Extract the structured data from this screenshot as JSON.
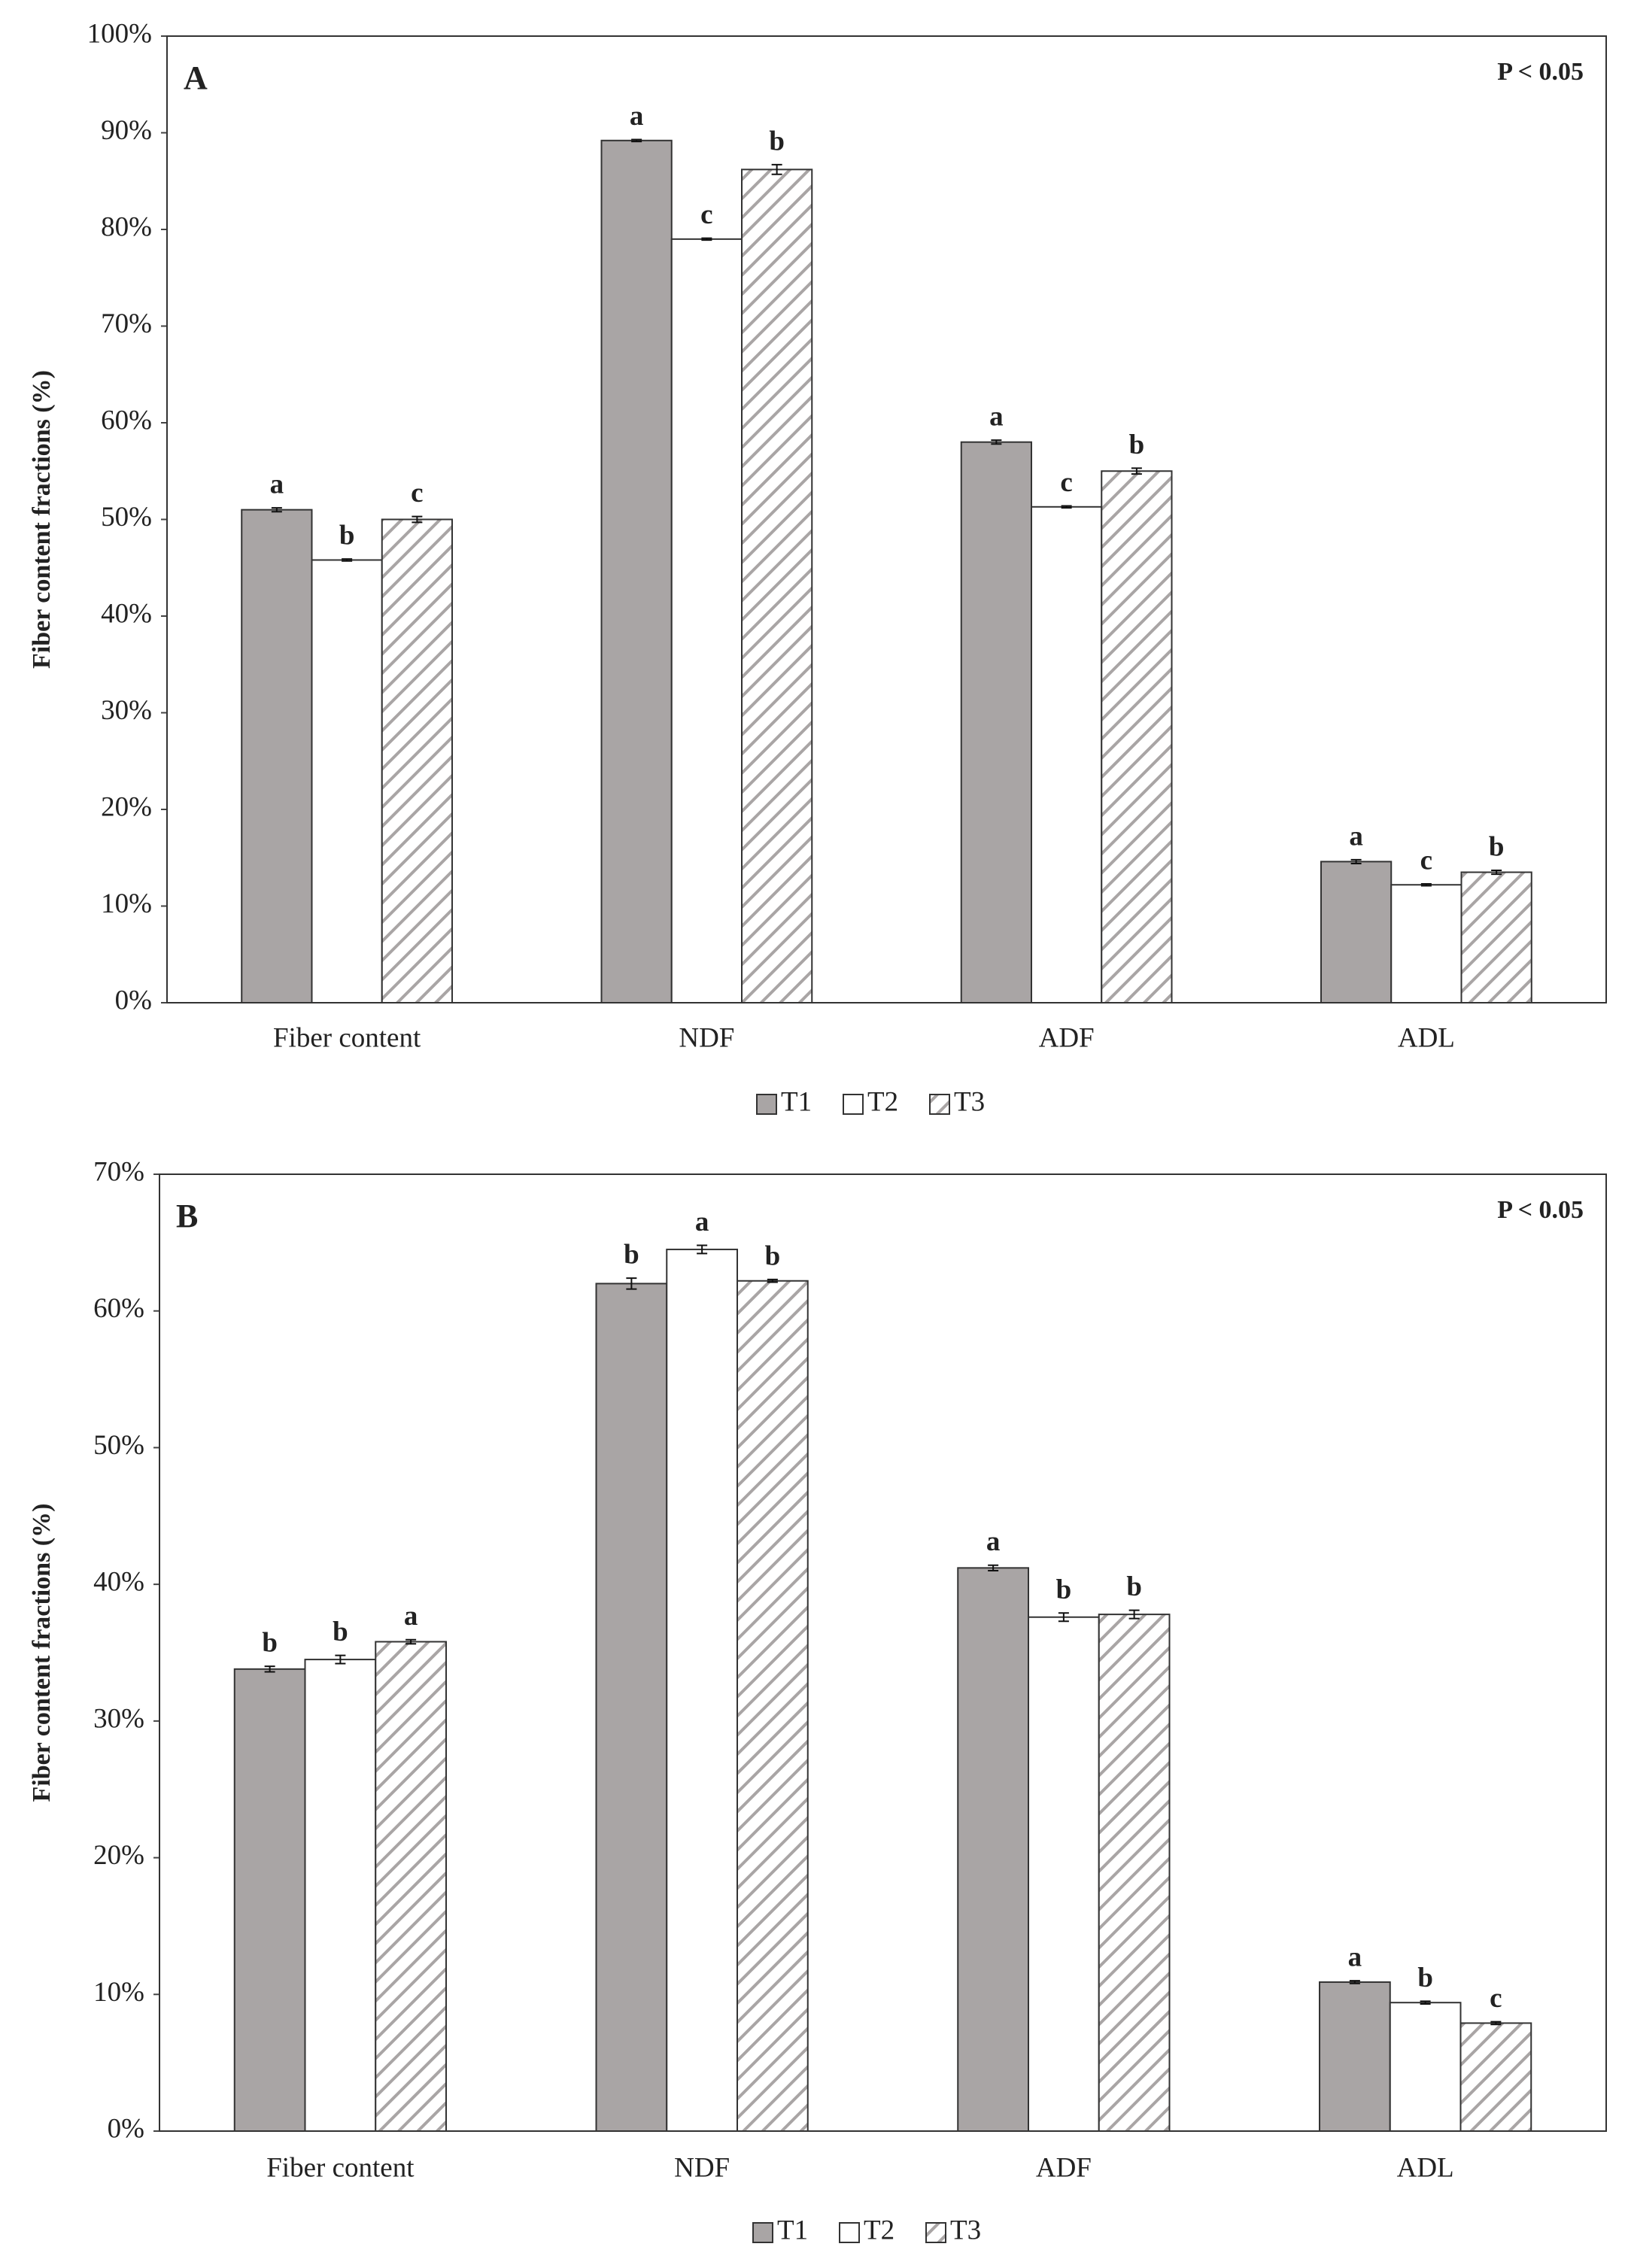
{
  "chart_data": [
    {
      "type": "bar",
      "panel": "A",
      "annotation": "P < 0.05",
      "y_label": "Fiber content fractions (%)",
      "categories": [
        "Fiber content",
        "NDF",
        "ADF",
        "ADL"
      ],
      "ylim": [
        0,
        100
      ],
      "yticks": [
        {
          "value": 0,
          "label": "0%"
        },
        {
          "value": 10,
          "label": "10%"
        },
        {
          "value": 20,
          "label": "20%"
        },
        {
          "value": 30,
          "label": "30%"
        },
        {
          "value": 40,
          "label": "40%"
        },
        {
          "value": 50,
          "label": "50%"
        },
        {
          "value": 60,
          "label": "60%"
        },
        {
          "value": 70,
          "label": "70%"
        },
        {
          "value": 80,
          "label": "80%"
        },
        {
          "value": 90,
          "label": "90%"
        },
        {
          "value": 100,
          "label": "100%"
        }
      ],
      "legend": "bottom",
      "series": [
        {
          "name": "T1",
          "color": "#a9a5a5",
          "pattern": "solid",
          "values": [
            51,
            89.2,
            58,
            14.6
          ],
          "errors": [
            0.2,
            0.1,
            0.2,
            0.2
          ],
          "letters": [
            "a",
            "a",
            "a",
            "a"
          ]
        },
        {
          "name": "T2",
          "color": "#ffffff",
          "pattern": "solid",
          "values": [
            45.8,
            79,
            51.3,
            12.2
          ],
          "errors": [
            0.1,
            0.1,
            0.1,
            0.1
          ],
          "letters": [
            "b",
            "c",
            "c",
            "c"
          ]
        },
        {
          "name": "T3",
          "color": "#a9a5a5",
          "pattern": "hatch",
          "values": [
            50,
            86.2,
            55,
            13.5
          ],
          "errors": [
            0.3,
            0.5,
            0.3,
            0.2
          ],
          "letters": [
            "c",
            "b",
            "b",
            "b"
          ]
        }
      ]
    },
    {
      "type": "bar",
      "panel": "B",
      "annotation": "P < 0.05",
      "y_label": "Fiber content fractions (%)",
      "categories": [
        "Fiber content",
        "NDF",
        "ADF",
        "ADL"
      ],
      "ylim": [
        0,
        70
      ],
      "yticks": [
        {
          "value": 0,
          "label": "0%"
        },
        {
          "value": 10,
          "label": "10%"
        },
        {
          "value": 20,
          "label": "20%"
        },
        {
          "value": 30,
          "label": "30%"
        },
        {
          "value": 40,
          "label": "40%"
        },
        {
          "value": 50,
          "label": "50%"
        },
        {
          "value": 60,
          "label": "60%"
        },
        {
          "value": 70,
          "label": "70%"
        }
      ],
      "legend": "bottom",
      "series": [
        {
          "name": "T1",
          "color": "#a9a5a5",
          "pattern": "solid",
          "values": [
            33.8,
            62,
            41.2,
            10.9
          ],
          "errors": [
            0.2,
            0.4,
            0.2,
            0.1
          ],
          "letters": [
            "b",
            "b",
            "a",
            "a"
          ]
        },
        {
          "name": "T2",
          "color": "#ffffff",
          "pattern": "solid",
          "values": [
            34.5,
            64.5,
            37.6,
            9.4
          ],
          "errors": [
            0.3,
            0.3,
            0.3,
            0.1
          ],
          "letters": [
            "b",
            "a",
            "b",
            "b"
          ]
        },
        {
          "name": "T3",
          "color": "#a9a5a5",
          "pattern": "hatch",
          "values": [
            35.8,
            62.2,
            37.8,
            7.9
          ],
          "errors": [
            0.15,
            0.1,
            0.3,
            0.1
          ],
          "letters": [
            "a",
            "b",
            "b",
            "c"
          ]
        }
      ]
    }
  ]
}
